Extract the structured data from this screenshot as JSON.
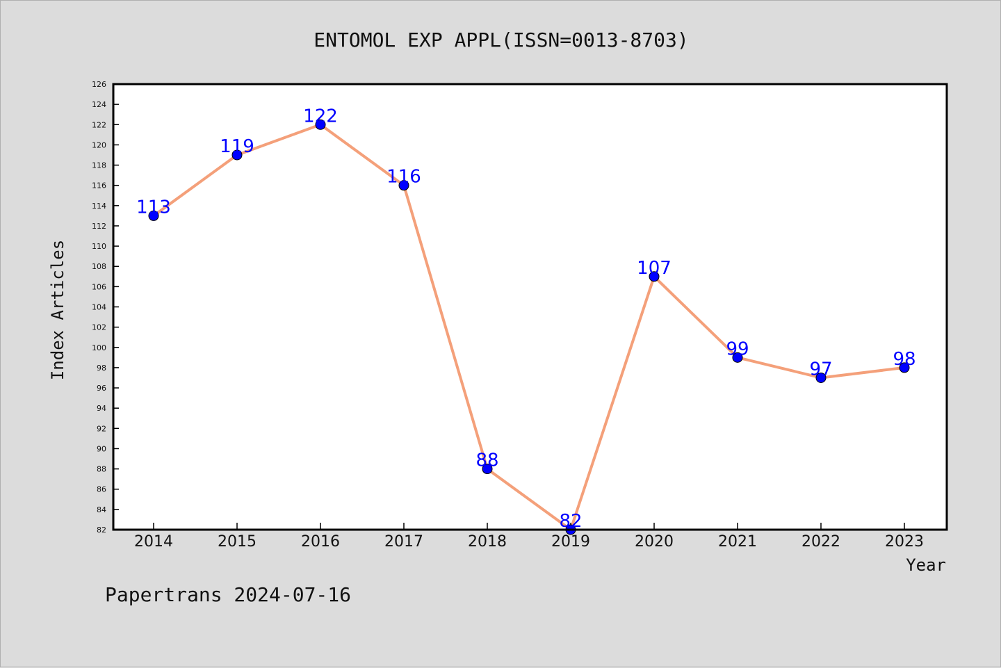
{
  "chart_data": {
    "type": "line",
    "title": "ENTOMOL EXP APPL(ISSN=0013-8703)",
    "xlabel": "Year",
    "ylabel": "Index Articles",
    "categories": [
      "2014",
      "2015",
      "2016",
      "2017",
      "2018",
      "2019",
      "2020",
      "2021",
      "2022",
      "2023"
    ],
    "series": [
      {
        "values": [
          113,
          119,
          122,
          116,
          88,
          82,
          107,
          99,
          97,
          98
        ]
      }
    ],
    "ylim": [
      82,
      126
    ],
    "ytick_step": 2,
    "grid": false,
    "line_color": "#f4a07a",
    "marker_color": "#0000ff",
    "label_color": "#0000ff"
  },
  "footer": {
    "text": "Papertrans 2024-07-16"
  }
}
